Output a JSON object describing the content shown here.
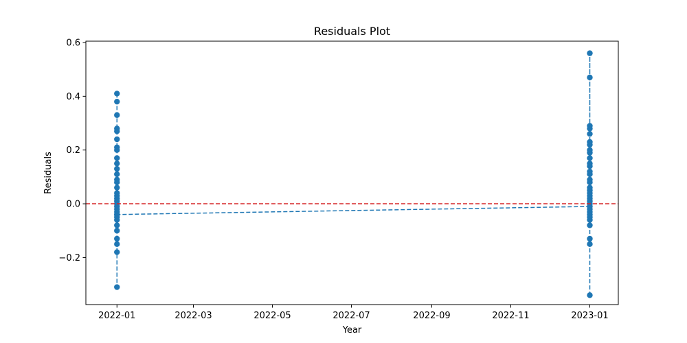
{
  "chart_data": {
    "type": "scatter",
    "title": "Residuals Plot",
    "xlabel": "Year",
    "ylabel": "Residuals",
    "x_axis": "date",
    "xlim": [
      "2021-12-08",
      "2023-01-23"
    ],
    "ylim": [
      -0.375,
      0.605
    ],
    "x_ticks": [
      "2022-01",
      "2022-03",
      "2022-05",
      "2022-07",
      "2022-09",
      "2022-11",
      "2023-01"
    ],
    "x_tick_dates": [
      "2022-01-01",
      "2022-03-01",
      "2022-05-01",
      "2022-07-01",
      "2022-09-01",
      "2022-11-01",
      "2023-01-01"
    ],
    "y_ticks": [
      -0.2,
      0.0,
      0.2,
      0.4,
      0.6
    ],
    "y_tick_labels": [
      "−0.2",
      "0.0",
      "0.2",
      "0.4",
      "0.6"
    ],
    "grid": false,
    "reference_line": {
      "y": 0.0,
      "color": "#d62728",
      "style": "dashed"
    },
    "series": [
      {
        "color": "#1f77b4",
        "line_style": "dashed",
        "marker": "circle",
        "points": [
          {
            "x": "2022-01-01",
            "y": 0.41
          },
          {
            "x": "2022-01-01",
            "y": 0.38
          },
          {
            "x": "2022-01-01",
            "y": 0.33
          },
          {
            "x": "2022-01-01",
            "y": 0.28
          },
          {
            "x": "2022-01-01",
            "y": 0.27
          },
          {
            "x": "2022-01-01",
            "y": 0.24
          },
          {
            "x": "2022-01-01",
            "y": 0.21
          },
          {
            "x": "2022-01-01",
            "y": 0.2
          },
          {
            "x": "2022-01-01",
            "y": 0.17
          },
          {
            "x": "2022-01-01",
            "y": 0.15
          },
          {
            "x": "2022-01-01",
            "y": 0.13
          },
          {
            "x": "2022-01-01",
            "y": 0.11
          },
          {
            "x": "2022-01-01",
            "y": 0.09
          },
          {
            "x": "2022-01-01",
            "y": 0.08
          },
          {
            "x": "2022-01-01",
            "y": 0.06
          },
          {
            "x": "2022-01-01",
            "y": 0.04
          },
          {
            "x": "2022-01-01",
            "y": 0.03
          },
          {
            "x": "2022-01-01",
            "y": 0.02
          },
          {
            "x": "2022-01-01",
            "y": 0.01
          },
          {
            "x": "2022-01-01",
            "y": 0.0
          },
          {
            "x": "2022-01-01",
            "y": -0.01
          },
          {
            "x": "2022-01-01",
            "y": -0.02
          },
          {
            "x": "2022-01-01",
            "y": -0.03
          },
          {
            "x": "2022-01-01",
            "y": -0.04
          },
          {
            "x": "2022-01-01",
            "y": -0.05
          },
          {
            "x": "2022-01-01",
            "y": -0.06
          },
          {
            "x": "2022-01-01",
            "y": -0.08
          },
          {
            "x": "2022-01-01",
            "y": -0.1
          },
          {
            "x": "2022-01-01",
            "y": -0.13
          },
          {
            "x": "2022-01-01",
            "y": -0.15
          },
          {
            "x": "2022-01-01",
            "y": -0.18
          },
          {
            "x": "2022-01-01",
            "y": -0.31
          },
          {
            "x": "2022-01-01",
            "y": -0.04
          },
          {
            "x": "2023-01-01",
            "y": -0.01
          },
          {
            "x": "2023-01-01",
            "y": 0.56
          },
          {
            "x": "2023-01-01",
            "y": 0.47
          },
          {
            "x": "2023-01-01",
            "y": 0.29
          },
          {
            "x": "2023-01-01",
            "y": 0.28
          },
          {
            "x": "2023-01-01",
            "y": 0.26
          },
          {
            "x": "2023-01-01",
            "y": 0.23
          },
          {
            "x": "2023-01-01",
            "y": 0.22
          },
          {
            "x": "2023-01-01",
            "y": 0.2
          },
          {
            "x": "2023-01-01",
            "y": 0.19
          },
          {
            "x": "2023-01-01",
            "y": 0.17
          },
          {
            "x": "2023-01-01",
            "y": 0.15
          },
          {
            "x": "2023-01-01",
            "y": 0.14
          },
          {
            "x": "2023-01-01",
            "y": 0.12
          },
          {
            "x": "2023-01-01",
            "y": 0.11
          },
          {
            "x": "2023-01-01",
            "y": 0.09
          },
          {
            "x": "2023-01-01",
            "y": 0.08
          },
          {
            "x": "2023-01-01",
            "y": 0.06
          },
          {
            "x": "2023-01-01",
            "y": 0.05
          },
          {
            "x": "2023-01-01",
            "y": 0.04
          },
          {
            "x": "2023-01-01",
            "y": 0.03
          },
          {
            "x": "2023-01-01",
            "y": 0.02
          },
          {
            "x": "2023-01-01",
            "y": 0.01
          },
          {
            "x": "2023-01-01",
            "y": 0.0
          },
          {
            "x": "2023-01-01",
            "y": -0.02
          },
          {
            "x": "2023-01-01",
            "y": -0.03
          },
          {
            "x": "2023-01-01",
            "y": -0.04
          },
          {
            "x": "2023-01-01",
            "y": -0.05
          },
          {
            "x": "2023-01-01",
            "y": -0.06
          },
          {
            "x": "2023-01-01",
            "y": -0.08
          },
          {
            "x": "2023-01-01",
            "y": -0.13
          },
          {
            "x": "2023-01-01",
            "y": -0.15
          },
          {
            "x": "2023-01-01",
            "y": -0.34
          }
        ]
      }
    ]
  }
}
